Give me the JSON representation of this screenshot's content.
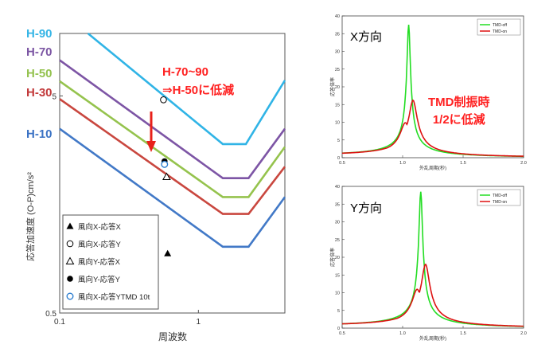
{
  "chart_data": [
    {
      "type": "line",
      "xlabel": "周波数",
      "ylabel": "応答加速度 (O-P)cm/s²",
      "xscale": "log",
      "yscale": "log",
      "xlim": [
        0.1,
        4.2
      ],
      "ylim": [
        0.5,
        9.7
      ],
      "xticks": [
        {
          "value": 0.1,
          "label": "0.1"
        },
        {
          "value": 1,
          "label": "1"
        }
      ],
      "yticks": [
        {
          "value": 0.5,
          "label": "0.5"
        },
        {
          "value": 5,
          "label": "5"
        }
      ],
      "grid": false,
      "series": [
        {
          "name": "H-90",
          "color": "#30b4e6",
          "points": [
            [
              0.16,
              9.7
            ],
            [
              1.5,
              3.0
            ],
            [
              2.2,
              3.0
            ],
            [
              4.2,
              5.9
            ]
          ]
        },
        {
          "name": "H-70",
          "color": "#7d55a5",
          "points": [
            [
              0.1,
              7.3
            ],
            [
              1.5,
              2.09
            ],
            [
              2.3,
              2.09
            ],
            [
              4.2,
              3.53
            ]
          ]
        },
        {
          "name": "H-50",
          "color": "#95c34d",
          "points": [
            [
              0.1,
              5.85
            ],
            [
              1.5,
              1.71
            ],
            [
              2.3,
              1.71
            ],
            [
              4.2,
              2.91
            ]
          ]
        },
        {
          "name": "H-30",
          "color": "#c9473f",
          "points": [
            [
              0.1,
              4.84
            ],
            [
              1.5,
              1.43
            ],
            [
              2.3,
              1.43
            ],
            [
              4.2,
              2.36
            ]
          ]
        },
        {
          "name": "H-10",
          "color": "#4279c7",
          "points": [
            [
              0.1,
              3.53
            ],
            [
              1.5,
              1.01
            ],
            [
              2.3,
              1.01
            ],
            [
              4.2,
              1.71
            ]
          ]
        }
      ],
      "line_labels": [
        {
          "text": "H-90",
          "color": "#35b5e6"
        },
        {
          "text": "H-70",
          "color": "#7b55a3"
        },
        {
          "text": "H-50",
          "color": "#94c24f"
        },
        {
          "text": "H-30",
          "color": "#c2393a"
        },
        {
          "text": "H-10",
          "color": "#3a72c4"
        }
      ],
      "markers": [
        {
          "name": "風向X-応答X",
          "shape": "filled-triangle",
          "x": 0.6,
          "y": 0.94
        },
        {
          "name": "風向X-応答Y",
          "shape": "open-circle",
          "x": 0.56,
          "y": 4.8
        },
        {
          "name": "風向Y-応答X",
          "shape": "open-triangle",
          "x": 0.59,
          "y": 2.12
        },
        {
          "name": "風向Y-応答Y",
          "shape": "filled-circle",
          "x": 0.57,
          "y": 2.5
        },
        {
          "name": "風向X-応答YTMD 10t",
          "shape": "blue-open-circle",
          "x": 0.57,
          "y": 2.42
        }
      ],
      "annotation": "H-70~90\n⇒H-50に低減",
      "annotation_color": "#ff2020",
      "arrow_color": "#e8201a",
      "legend": {
        "position": "bottom-left"
      }
    },
    {
      "type": "line",
      "title": "X方向",
      "xlabel": "外乱周期(秒)",
      "ylabel": "応答倍率",
      "xlim": [
        0.5,
        2.0
      ],
      "ylim": [
        0,
        40
      ],
      "xticks": [
        "0.5",
        "1.0",
        "1.5",
        "2.0"
      ],
      "yticks": [
        "0",
        "5",
        "10",
        "15",
        "20",
        "25",
        "30",
        "35",
        "40"
      ],
      "annotation": "TMD制振時\n1/2に低減",
      "annotation_color": "#ff2020",
      "legend": {
        "position": "top-right"
      },
      "series": [
        {
          "name": "TMD-off",
          "color": "#22dd22",
          "x0": 1.05,
          "peak": 37.5
        },
        {
          "name": "TMD-on",
          "color": "#dd1111",
          "x0": 1.05,
          "peak": 16.2
        }
      ]
    },
    {
      "type": "line",
      "title": "Y方向",
      "xlabel": "外乱周期(秒)",
      "ylabel": "応答倍率",
      "xlim": [
        0.5,
        2.0
      ],
      "ylim": [
        0,
        40
      ],
      "xticks": [
        "0.5",
        "1.0",
        "1.5",
        "2.0"
      ],
      "yticks": [
        "0",
        "5",
        "10",
        "15",
        "20",
        "25",
        "30",
        "35",
        "40"
      ],
      "legend": {
        "position": "top-right"
      },
      "series": [
        {
          "name": "TMD-off",
          "color": "#22dd22",
          "x0": 1.15,
          "peak": 38.5
        },
        {
          "name": "TMD-on",
          "color": "#dd1111",
          "x0": 1.15,
          "peak": 18.0
        }
      ]
    }
  ]
}
